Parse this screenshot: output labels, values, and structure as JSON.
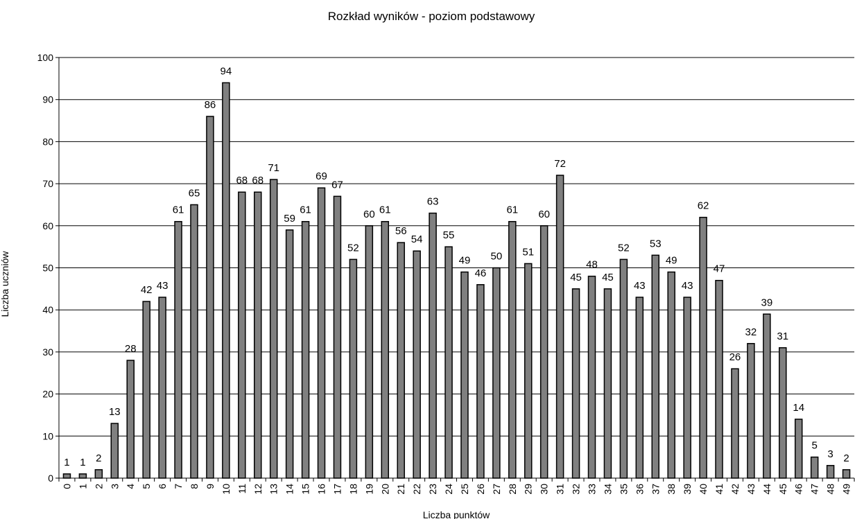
{
  "chart_data": {
    "type": "bar",
    "title": "Rozkład wyników - poziom podstawowy",
    "xlabel": "Liczba punktów",
    "ylabel": "Liczba uczniów",
    "ylim": [
      0,
      100
    ],
    "yticks": [
      0,
      10,
      20,
      30,
      40,
      50,
      60,
      70,
      80,
      90,
      100
    ],
    "grid": "horizontal",
    "legend": "none",
    "bar_color": "#808080",
    "categories": [
      "0",
      "1",
      "2",
      "3",
      "4",
      "5",
      "6",
      "7",
      "8",
      "9",
      "10",
      "11",
      "12",
      "13",
      "14",
      "15",
      "16",
      "17",
      "18",
      "19",
      "20",
      "21",
      "22",
      "23",
      "24",
      "25",
      "26",
      "27",
      "28",
      "29",
      "30",
      "31",
      "32",
      "33",
      "34",
      "35",
      "36",
      "37",
      "38",
      "39",
      "40",
      "41",
      "42",
      "43",
      "44",
      "45",
      "46",
      "47",
      "48",
      "49"
    ],
    "values": [
      1,
      1,
      2,
      13,
      28,
      42,
      43,
      61,
      65,
      86,
      94,
      68,
      68,
      71,
      59,
      61,
      69,
      67,
      52,
      60,
      61,
      56,
      54,
      63,
      55,
      49,
      46,
      50,
      61,
      51,
      60,
      72,
      45,
      48,
      45,
      52,
      43,
      53,
      49,
      43,
      62,
      47,
      26,
      32,
      39,
      31,
      14,
      5,
      3,
      2
    ]
  }
}
